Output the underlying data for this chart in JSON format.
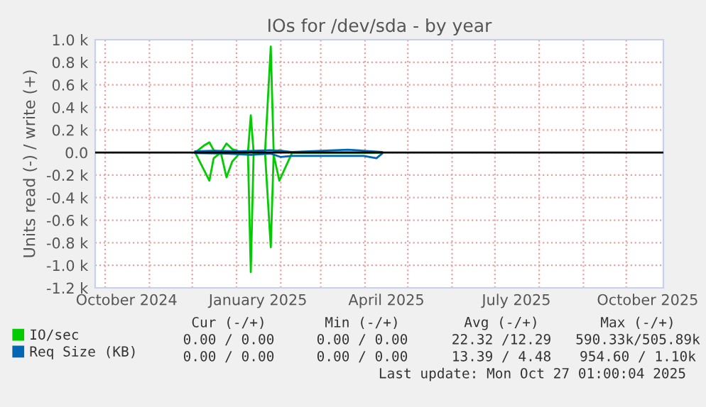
{
  "chart_data": {
    "type": "line",
    "title": "IOs for /dev/sda - by year",
    "ylabel": "Units read (-) / write (+)",
    "xlim": [
      "2024-09-24",
      "2025-10-27"
    ],
    "ylim": [
      -1200,
      1000
    ],
    "yticks": [
      {
        "value": -1200,
        "label": "-1.2 k"
      },
      {
        "value": -1000,
        "label": "-1.0 k"
      },
      {
        "value": -800,
        "label": "-0.8 k"
      },
      {
        "value": -600,
        "label": "-0.6 k"
      },
      {
        "value": -400,
        "label": "-0.4 k"
      },
      {
        "value": -200,
        "label": "-0.2 k"
      },
      {
        "value": 0,
        "label": "0.0"
      },
      {
        "value": 200,
        "label": "0.2 k"
      },
      {
        "value": 400,
        "label": "0.4 k"
      },
      {
        "value": 600,
        "label": "0.6 k"
      },
      {
        "value": 800,
        "label": "0.8 k"
      },
      {
        "value": 1000,
        "label": "1.0 k"
      }
    ],
    "xticks": [
      {
        "value": "2024-10-01",
        "label": null
      },
      {
        "value": "2024-11-01",
        "label": null
      },
      {
        "value": "2024-12-01",
        "label": null
      },
      {
        "value": "2025-01-01",
        "label": null
      },
      {
        "value": "2025-02-01",
        "label": null
      },
      {
        "value": "2025-03-01",
        "label": null
      },
      {
        "value": "2025-04-01",
        "label": null
      },
      {
        "value": "2025-05-01",
        "label": null
      },
      {
        "value": "2025-06-01",
        "label": null
      },
      {
        "value": "2025-07-01",
        "label": null
      },
      {
        "value": "2025-08-01",
        "label": null
      },
      {
        "value": "2025-09-01",
        "label": null
      },
      {
        "value": "2025-10-01",
        "label": null
      },
      {
        "value": "2024-10-16",
        "label": "October 2024"
      },
      {
        "value": "2025-01-16",
        "label": "January 2025"
      },
      {
        "value": "2025-04-16",
        "label": "April 2025"
      },
      {
        "value": "2025-07-16",
        "label": "July 2025"
      },
      {
        "value": "2025-10-16",
        "label": "October 2025"
      }
    ],
    "grid": true,
    "legend": "bottom left",
    "ref_lines": [
      {
        "axis": "y",
        "value": 0,
        "color": "#000000"
      }
    ],
    "series": [
      {
        "name": "IO/sec",
        "color": "#00cc00",
        "x": [
          "2024-12-03",
          "2024-12-09",
          "2024-12-13",
          "2024-12-16",
          "2024-12-21",
          "2024-12-25",
          "2024-12-29",
          "2025-01-03",
          "2025-01-09",
          "2025-01-11",
          "2025-01-13",
          "2025-01-21",
          "2025-01-25",
          "2025-01-27",
          "2025-01-31",
          "2025-02-09",
          "2025-04-13"
        ],
        "values": [
          0,
          60,
          90,
          20,
          0,
          80,
          30,
          10,
          0,
          330,
          0,
          10,
          940,
          10,
          20,
          0,
          0
        ]
      },
      {
        "color": "#00cc00",
        "x": [
          "2024-12-03",
          "2024-12-09",
          "2024-12-13",
          "2024-12-16",
          "2024-12-21",
          "2024-12-25",
          "2024-12-29",
          "2025-01-03",
          "2025-01-09",
          "2025-01-11",
          "2025-01-13",
          "2025-01-21",
          "2025-01-25",
          "2025-01-27",
          "2025-01-31",
          "2025-02-09",
          "2025-04-13"
        ],
        "values": [
          0,
          -150,
          -250,
          -50,
          0,
          -220,
          -80,
          -10,
          0,
          -1060,
          0,
          -10,
          -840,
          -20,
          -250,
          0,
          0
        ]
      },
      {
        "name": "Req Size (KB)",
        "color": "#0066b3",
        "x": [
          "2024-12-03",
          "2024-12-16",
          "2025-01-03",
          "2025-01-25",
          "2025-02-09",
          "2025-03-20",
          "2025-04-13"
        ],
        "values": [
          10,
          15,
          10,
          20,
          5,
          25,
          5
        ]
      },
      {
        "color": "#0066b3",
        "x": [
          "2024-12-03",
          "2024-12-25",
          "2025-01-11",
          "2025-01-25",
          "2025-02-01",
          "2025-02-09",
          "2025-03-31",
          "2025-04-09",
          "2025-04-13"
        ],
        "values": [
          -5,
          -10,
          -20,
          -10,
          -40,
          -30,
          -30,
          -50,
          -10
        ]
      }
    ],
    "annotations": [
      "Cur (-/+)",
      "Min (-/+)",
      "Avg (-/+)",
      "Max (-/+)",
      "0.00 / 0.00",
      "0.00 / 0.00",
      "22.32 /12.29",
      "590.33k/505.89k",
      "0.00 / 0.00",
      "0.00 / 0.00",
      "13.39 / 4.48",
      "954.60 / 1.10k",
      "Last update: Mon Oct 27 01:00:04 2025"
    ]
  }
}
